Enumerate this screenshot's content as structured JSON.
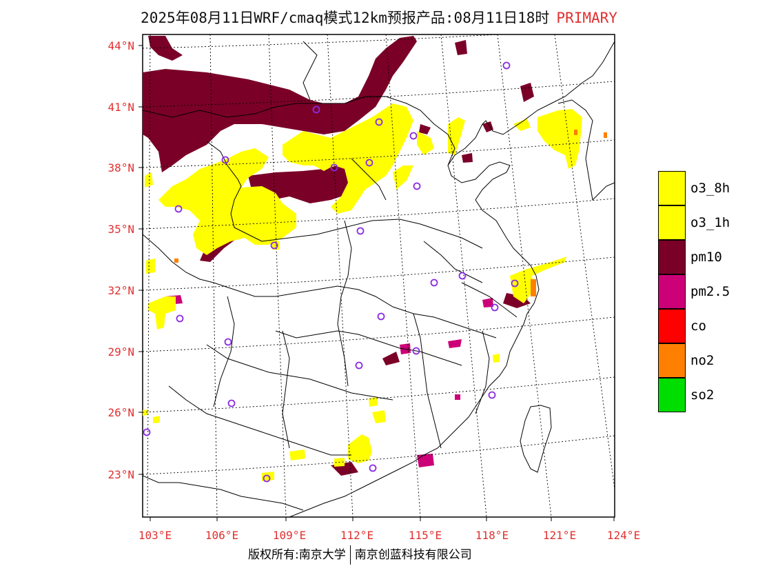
{
  "title": {
    "main": "2025年08月11日WRF/cmaq模式12km预报产品:08月11日18时",
    "tag": "PRIMARY"
  },
  "map": {
    "lat_labels": [
      "44°N",
      "41°N",
      "38°N",
      "35°N",
      "32°N",
      "29°N",
      "26°N",
      "23°N"
    ],
    "lon_labels": [
      "103°E",
      "106°E",
      "109°E",
      "112°E",
      "115°E",
      "118°E",
      "121°E",
      "124°E"
    ],
    "lat_range": [
      20.5,
      44.5
    ],
    "lon_range": [
      102.7,
      124
    ],
    "colors": {
      "o3_8h": "#ffff00",
      "pm10": "#7a0028",
      "pm25": "#cc0077",
      "no2": "#ff8000",
      "station": "#8a2be2"
    }
  },
  "legend": [
    {
      "label": "o3_8h",
      "color": "#ffff00"
    },
    {
      "label": "o3_1h",
      "color": "#ffff00"
    },
    {
      "label": "pm10",
      "color": "#7a0028"
    },
    {
      "label": "pm2.5",
      "color": "#cc0077"
    },
    {
      "label": "co",
      "color": "#ff0000"
    },
    {
      "label": "no2",
      "color": "#ff8000"
    },
    {
      "label": "so2",
      "color": "#00dd00"
    }
  ],
  "footer": {
    "left": "版权所有:南京大学",
    "right": "南京创蓝科技有限公司"
  }
}
